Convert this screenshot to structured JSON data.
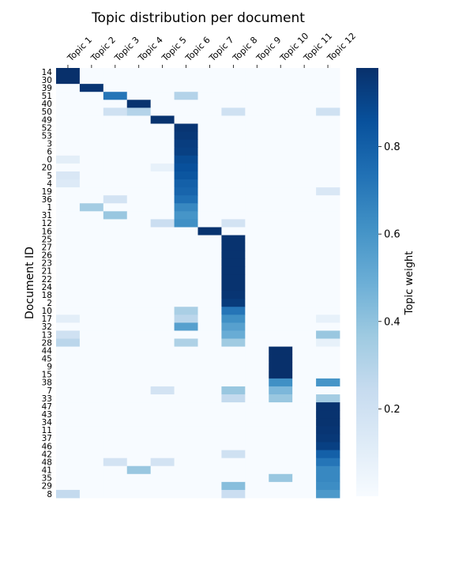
{
  "chart_data": {
    "type": "heatmap",
    "title": "Topic distribution per document",
    "xlabel": "",
    "ylabel": "Document ID",
    "colorbar_label": "Topic weight",
    "colormap": "Blues",
    "color_min": "#f7fbff",
    "color_max": "#08306b",
    "value_range": [
      0.0,
      0.98
    ],
    "colorbar_ticks": [
      "0.2",
      "0.4",
      "0.6",
      "0.8"
    ],
    "colorbar_tick_values": [
      0.2,
      0.4,
      0.6,
      0.8
    ],
    "columns": [
      "Topic 1",
      "Topic 2",
      "Topic 3",
      "Topic 4",
      "Topic 5",
      "Topic 6",
      "Topic 7",
      "Topic 8",
      "Topic 9",
      "Topic 10",
      "Topic 11",
      "Topic 12"
    ],
    "rows": [
      "14",
      "30",
      "39",
      "51",
      "40",
      "50",
      "49",
      "52",
      "53",
      "3",
      "6",
      "0",
      "20",
      "5",
      "4",
      "19",
      "36",
      "1",
      "31",
      "12",
      "16",
      "25",
      "27",
      "26",
      "23",
      "21",
      "22",
      "24",
      "18",
      "2",
      "10",
      "17",
      "32",
      "13",
      "28",
      "44",
      "45",
      "9",
      "15",
      "38",
      "7",
      "33",
      "47",
      "43",
      "34",
      "11",
      "37",
      "46",
      "42",
      "48",
      "41",
      "35",
      "29",
      "8"
    ],
    "values": [
      [
        0.98,
        0,
        0,
        0,
        0,
        0,
        0,
        0,
        0,
        0,
        0,
        0
      ],
      [
        0.98,
        0,
        0,
        0,
        0,
        0,
        0,
        0,
        0,
        0,
        0,
        0
      ],
      [
        0,
        0.96,
        0,
        0,
        0,
        0,
        0,
        0,
        0,
        0,
        0,
        0
      ],
      [
        0,
        0,
        0.72,
        0,
        0,
        0.3,
        0,
        0,
        0,
        0,
        0,
        0
      ],
      [
        0,
        0,
        0,
        0.97,
        0,
        0,
        0,
        0,
        0,
        0,
        0,
        0
      ],
      [
        0,
        0,
        0.2,
        0.3,
        0,
        0,
        0,
        0.2,
        0,
        0,
        0,
        0.2
      ],
      [
        0,
        0,
        0,
        0,
        0.97,
        0,
        0,
        0,
        0,
        0,
        0,
        0
      ],
      [
        0,
        0,
        0,
        0,
        0,
        0.96,
        0,
        0,
        0,
        0,
        0,
        0
      ],
      [
        0,
        0,
        0,
        0,
        0,
        0.95,
        0,
        0,
        0,
        0,
        0,
        0
      ],
      [
        0,
        0,
        0,
        0,
        0,
        0.93,
        0,
        0,
        0,
        0,
        0,
        0
      ],
      [
        0,
        0,
        0,
        0,
        0,
        0.92,
        0,
        0,
        0,
        0,
        0,
        0
      ],
      [
        0.1,
        0,
        0,
        0,
        0,
        0.88,
        0,
        0,
        0,
        0,
        0,
        0
      ],
      [
        0,
        0,
        0,
        0,
        0.08,
        0.86,
        0,
        0,
        0,
        0,
        0,
        0
      ],
      [
        0.15,
        0,
        0,
        0,
        0,
        0.84,
        0,
        0,
        0,
        0,
        0,
        0
      ],
      [
        0.13,
        0,
        0,
        0,
        0,
        0.8,
        0,
        0,
        0,
        0,
        0,
        0
      ],
      [
        0,
        0,
        0,
        0,
        0,
        0.78,
        0,
        0,
        0,
        0,
        0,
        0.15
      ],
      [
        0,
        0,
        0.18,
        0,
        0,
        0.74,
        0,
        0,
        0,
        0,
        0,
        0
      ],
      [
        0,
        0.35,
        0,
        0,
        0,
        0.65,
        0,
        0,
        0,
        0,
        0,
        0
      ],
      [
        0,
        0,
        0.38,
        0,
        0,
        0.6,
        0,
        0,
        0,
        0,
        0,
        0
      ],
      [
        0,
        0,
        0,
        0,
        0.22,
        0.62,
        0,
        0.18,
        0,
        0,
        0,
        0
      ],
      [
        0,
        0,
        0,
        0,
        0,
        0,
        0.97,
        0,
        0,
        0,
        0,
        0
      ],
      [
        0,
        0,
        0,
        0,
        0,
        0,
        0,
        0.97,
        0,
        0,
        0,
        0
      ],
      [
        0,
        0,
        0,
        0,
        0,
        0,
        0,
        0.97,
        0,
        0,
        0,
        0
      ],
      [
        0,
        0,
        0,
        0,
        0,
        0,
        0,
        0.97,
        0,
        0,
        0,
        0
      ],
      [
        0,
        0,
        0,
        0,
        0,
        0,
        0,
        0.97,
        0,
        0,
        0,
        0
      ],
      [
        0,
        0,
        0,
        0,
        0,
        0,
        0,
        0.97,
        0,
        0,
        0,
        0
      ],
      [
        0,
        0,
        0,
        0,
        0,
        0,
        0,
        0.97,
        0,
        0,
        0,
        0
      ],
      [
        0,
        0,
        0,
        0,
        0,
        0,
        0,
        0.97,
        0,
        0,
        0,
        0
      ],
      [
        0,
        0,
        0,
        0,
        0,
        0,
        0,
        0.96,
        0,
        0,
        0,
        0
      ],
      [
        0,
        0,
        0,
        0,
        0,
        0,
        0,
        0.94,
        0,
        0,
        0,
        0
      ],
      [
        0,
        0,
        0,
        0,
        0,
        0.33,
        0,
        0.72,
        0,
        0,
        0,
        0
      ],
      [
        0.1,
        0,
        0,
        0,
        0,
        0.28,
        0,
        0.62,
        0,
        0,
        0,
        0.08
      ],
      [
        0,
        0,
        0,
        0,
        0,
        0.55,
        0,
        0.55,
        0,
        0,
        0,
        0
      ],
      [
        0.2,
        0,
        0,
        0,
        0,
        0,
        0,
        0.5,
        0,
        0,
        0,
        0.38
      ],
      [
        0.28,
        0,
        0,
        0,
        0,
        0.32,
        0,
        0.36,
        0,
        0,
        0,
        0.08
      ],
      [
        0,
        0,
        0,
        0,
        0,
        0,
        0,
        0,
        0,
        0.98,
        0,
        0
      ],
      [
        0,
        0,
        0,
        0,
        0,
        0,
        0,
        0,
        0,
        0.98,
        0,
        0
      ],
      [
        0,
        0,
        0,
        0,
        0,
        0,
        0,
        0,
        0,
        0.98,
        0,
        0
      ],
      [
        0,
        0,
        0,
        0,
        0,
        0,
        0,
        0,
        0,
        0.98,
        0,
        0
      ],
      [
        0,
        0,
        0,
        0,
        0,
        0,
        0,
        0,
        0,
        0.62,
        0,
        0.6
      ],
      [
        0,
        0,
        0,
        0,
        0.18,
        0,
        0,
        0.38,
        0,
        0.45,
        0,
        0
      ],
      [
        0,
        0,
        0,
        0,
        0,
        0,
        0,
        0.25,
        0,
        0.38,
        0,
        0.35
      ],
      [
        0,
        0,
        0,
        0,
        0,
        0,
        0,
        0,
        0,
        0,
        0,
        0.97
      ],
      [
        0,
        0,
        0,
        0,
        0,
        0,
        0,
        0,
        0,
        0,
        0,
        0.97
      ],
      [
        0,
        0,
        0,
        0,
        0,
        0,
        0,
        0,
        0,
        0,
        0,
        0.97
      ],
      [
        0,
        0,
        0,
        0,
        0,
        0,
        0,
        0,
        0,
        0,
        0,
        0.96
      ],
      [
        0,
        0,
        0,
        0,
        0,
        0,
        0,
        0,
        0,
        0,
        0,
        0.95
      ],
      [
        0,
        0,
        0,
        0,
        0,
        0,
        0,
        0,
        0,
        0,
        0,
        0.92
      ],
      [
        0,
        0,
        0,
        0,
        0,
        0,
        0,
        0.2,
        0,
        0,
        0,
        0.8
      ],
      [
        0,
        0,
        0.18,
        0,
        0.18,
        0,
        0,
        0,
        0,
        0,
        0,
        0.72
      ],
      [
        0,
        0,
        0,
        0.38,
        0,
        0,
        0,
        0,
        0,
        0,
        0,
        0.65
      ],
      [
        0,
        0,
        0,
        0,
        0,
        0,
        0,
        0,
        0,
        0.38,
        0,
        0.65
      ],
      [
        0,
        0,
        0,
        0,
        0,
        0,
        0,
        0.42,
        0,
        0,
        0,
        0.63
      ],
      [
        0.25,
        0,
        0,
        0,
        0,
        0,
        0,
        0.22,
        0,
        0,
        0,
        0.58
      ]
    ]
  }
}
